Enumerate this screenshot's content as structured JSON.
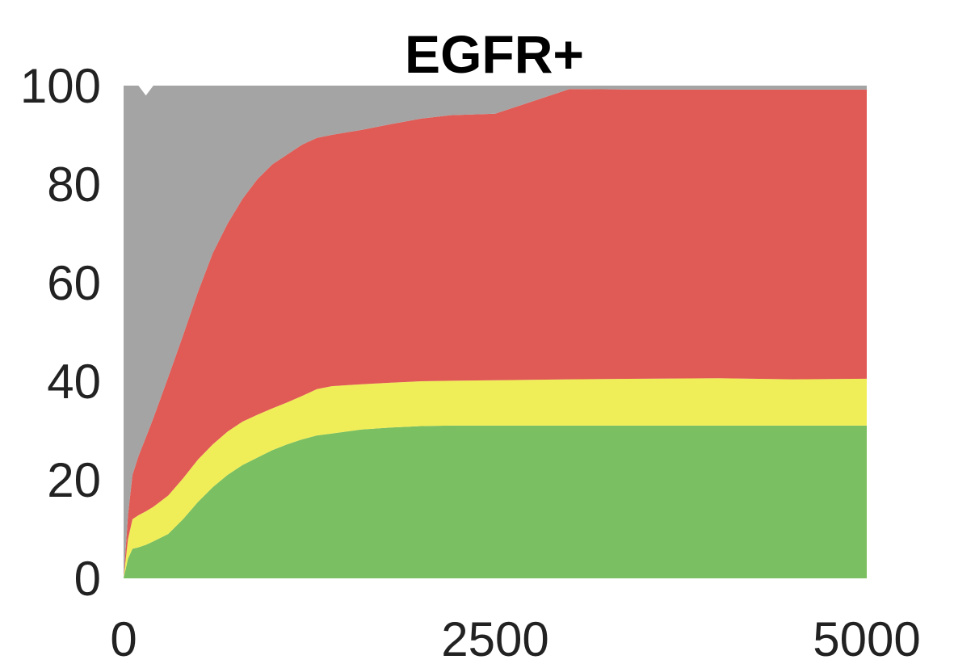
{
  "chart_data": {
    "type": "area",
    "stacked": true,
    "title": "EGFR+",
    "xlabel": "",
    "ylabel": "",
    "xlim": [
      0,
      5000
    ],
    "ylim": [
      0,
      100
    ],
    "x_ticks": [
      "0",
      "2500",
      "5000"
    ],
    "y_ticks": [
      "0",
      "20",
      "40",
      "60",
      "80",
      "100"
    ],
    "grid": false,
    "legend": "none",
    "x": [
      0,
      30,
      60,
      100,
      150,
      200,
      300,
      400,
      500,
      600,
      700,
      800,
      900,
      1000,
      1100,
      1200,
      1300,
      1400,
      1500,
      1600,
      1800,
      2000,
      2200,
      2500,
      3000,
      3500,
      4000,
      4500,
      5000
    ],
    "series": [
      {
        "color": "#7abf62",
        "values": [
          0,
          4,
          6,
          6.3,
          6.8,
          7.5,
          9,
          12,
          15.5,
          18.5,
          21,
          23,
          24.5,
          26,
          27.2,
          28.2,
          29,
          29.4,
          29.8,
          30.2,
          30.6,
          30.9,
          31,
          31,
          31,
          31,
          31,
          31,
          31
        ]
      },
      {
        "color": "#f0ee58",
        "values": [
          0,
          4,
          6,
          6.5,
          6.8,
          7,
          7.8,
          8.3,
          8.6,
          8.7,
          8.8,
          8.8,
          8.7,
          8.5,
          8.5,
          8.8,
          9.4,
          9.6,
          9.4,
          9.2,
          9.1,
          9.1,
          9.1,
          9.2,
          9.4,
          9.5,
          9.6,
          9.4,
          9.5
        ]
      },
      {
        "color": "#e05b55",
        "values": [
          0,
          5,
          9,
          12,
          15,
          18,
          24,
          29,
          34,
          38.8,
          42.2,
          45.2,
          47.8,
          49.5,
          50.3,
          51,
          51,
          51,
          51.3,
          51.6,
          52.5,
          53.3,
          53.9,
          54.1,
          58.9,
          58.7,
          58.6,
          58.8,
          58.7
        ]
      },
      {
        "color": "#a4a4a4",
        "values": [
          100,
          87,
          79,
          75.2,
          69.4,
          67.5,
          59.2,
          50.7,
          41.9,
          34,
          28,
          23,
          19,
          16,
          14,
          12,
          10.6,
          10,
          9.5,
          9,
          7.8,
          6.7,
          6,
          5.7,
          0.7,
          0.8,
          0.8,
          0.8,
          0.8
        ]
      }
    ]
  }
}
